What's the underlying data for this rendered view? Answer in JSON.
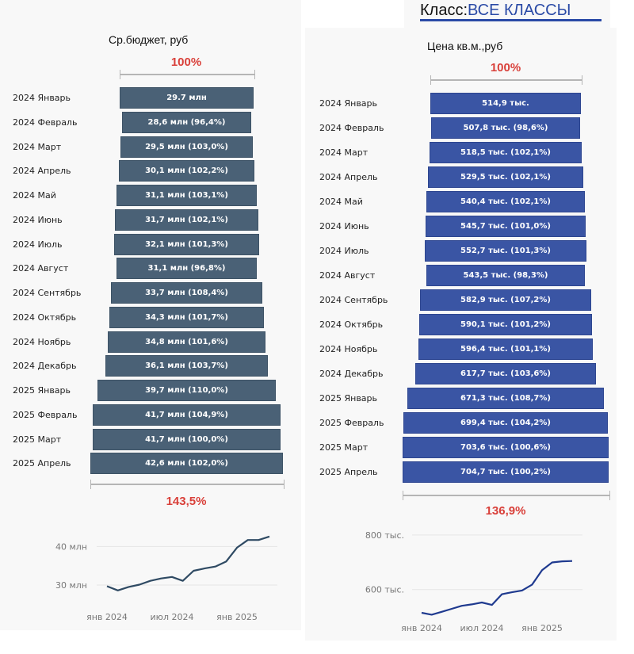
{
  "header": {
    "class_label": "Класс:",
    "class_value": "ВСЕ КЛАССЫ",
    "accent": "#2a4aa6"
  },
  "chart_data": [
    {
      "type": "bar",
      "id": "budget-funnel",
      "title": "Ср.бюджет, руб",
      "top_percent": "100%",
      "bottom_percent": "143,5%",
      "bar_color": "#4a6176",
      "unit": "млн",
      "categories": [
        "2024 Январь",
        "2024 Февраль",
        "2024 Март",
        "2024 Апрель",
        "2024 Май",
        "2024 Июнь",
        "2024 Июль",
        "2024 Август",
        "2024 Сентябрь",
        "2024 Октябрь",
        "2024 Ноябрь",
        "2024 Декабрь",
        "2025 Январь",
        "2025 Февраль",
        "2025 Март",
        "2025 Апрель"
      ],
      "values": [
        29.7,
        28.6,
        29.5,
        30.1,
        31.1,
        31.7,
        32.1,
        31.1,
        33.7,
        34.3,
        34.8,
        36.1,
        39.7,
        41.7,
        41.7,
        42.6
      ],
      "labels": [
        "29.7 млн",
        "28,6 млн (96,4%)",
        "29,5 млн (103,0%)",
        "30,1 млн (102,2%)",
        "31,1 млн (103,1%)",
        "31,7 млн (102,1%)",
        "32,1 млн (101,3%)",
        "31,1 млн (96,8%)",
        "33,7 млн (108,4%)",
        "34,3 млн (101,7%)",
        "34,8 млн (101,6%)",
        "36,1 млн (103,7%)",
        "39,7 млн (110,0%)",
        "41,7 млн (104,9%)",
        "41,7 млн (100,0%)",
        "42,6 млн (102,0%)"
      ]
    },
    {
      "type": "bar",
      "id": "price-funnel",
      "title": "Цена кв.м.,руб",
      "top_percent": "100%",
      "bottom_percent": "136,9%",
      "bar_color": "#3a55a4",
      "unit": "тыс.",
      "categories": [
        "2024 Январь",
        "2024 Февраль",
        "2024 Март",
        "2024 Апрель",
        "2024 Май",
        "2024 Июнь",
        "2024 Июль",
        "2024 Август",
        "2024 Сентябрь",
        "2024 Октябрь",
        "2024 Ноябрь",
        "2024 Декабрь",
        "2025 Январь",
        "2025 Февраль",
        "2025 Март",
        "2025 Апрель"
      ],
      "values": [
        514.9,
        507.8,
        518.5,
        529.5,
        540.4,
        545.7,
        552.7,
        543.5,
        582.9,
        590.1,
        596.4,
        617.7,
        671.3,
        699.4,
        703.6,
        704.7
      ],
      "labels": [
        "514,9 тыс.",
        "507,8 тыс. (98,6%)",
        "518,5 тыс. (102,1%)",
        "529,5 тыс. (102,1%)",
        "540,4 тыс. (102,1%)",
        "545,7 тыс. (101,0%)",
        "552,7 тыс. (101,3%)",
        "543,5 тыс. (98,3%)",
        "582,9 тыс. (107,2%)",
        "590,1 тыс. (101,2%)",
        "596,4 тыс. (101,1%)",
        "617,7 тыс. (103,6%)",
        "671,3 тыс. (108,7%)",
        "699,4 тыс. (104,2%)",
        "703,6 тыс. (100,6%)",
        "704,7 тыс. (100,2%)"
      ]
    },
    {
      "type": "line",
      "id": "budget-line",
      "line_color": "#2f4a63",
      "x_ticks": [
        "янв 2024",
        "июл 2024",
        "янв 2025"
      ],
      "x_tick_index": [
        0,
        6,
        12
      ],
      "y_ticks": [
        30,
        40
      ],
      "y_tick_labels": [
        "30 млн",
        "40 млн"
      ],
      "ylim": [
        26.5,
        44
      ],
      "grid": true,
      "values": [
        29.7,
        28.6,
        29.5,
        30.1,
        31.1,
        31.7,
        32.1,
        31.1,
        33.7,
        34.3,
        34.8,
        36.1,
        39.7,
        41.7,
        41.7,
        42.6
      ]
    },
    {
      "type": "line",
      "id": "price-line",
      "line_color": "#1f3a8f",
      "x_ticks": [
        "янв 2024",
        "июл 2024",
        "янв 2025"
      ],
      "x_tick_index": [
        0,
        6,
        12
      ],
      "y_ticks": [
        600,
        800
      ],
      "y_tick_labels": [
        "600 тыс.",
        "800 тыс."
      ],
      "ylim": [
        480,
        820
      ],
      "grid": true,
      "values": [
        514.9,
        507.8,
        518.5,
        529.5,
        540.4,
        545.7,
        552.7,
        543.5,
        582.9,
        590.1,
        596.4,
        617.7,
        671.3,
        699.4,
        703.6,
        704.7
      ]
    }
  ]
}
